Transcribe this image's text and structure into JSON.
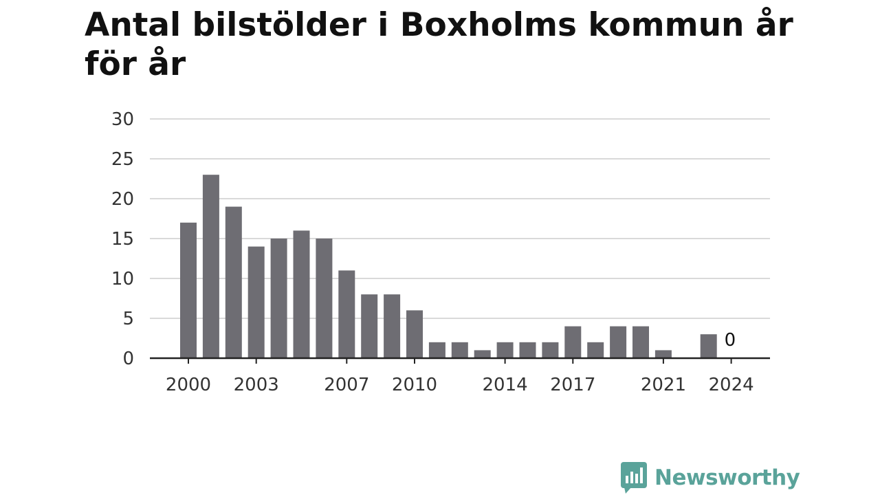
{
  "chart_data": {
    "type": "bar",
    "title": "Antal bilstölder i Boxholms kommun år för år",
    "xlabel": "",
    "ylabel": "",
    "categories": [
      "2000",
      "2001",
      "2002",
      "2003",
      "2004",
      "2005",
      "2006",
      "2007",
      "2008",
      "2009",
      "2010",
      "2011",
      "2012",
      "2013",
      "2014",
      "2015",
      "2016",
      "2017",
      "2018",
      "2019",
      "2020",
      "2021",
      "2022",
      "2023",
      "2024"
    ],
    "values": [
      17,
      23,
      19,
      14,
      15,
      16,
      15,
      11,
      8,
      8,
      6,
      2,
      2,
      1,
      2,
      2,
      2,
      4,
      2,
      4,
      4,
      1,
      0,
      3,
      0
    ],
    "x_tick_labels": [
      "2000",
      "2003",
      "2007",
      "2010",
      "2014",
      "2017",
      "2021",
      "2024"
    ],
    "y_ticks": [
      0,
      5,
      10,
      15,
      20,
      25,
      30
    ],
    "ylim": [
      0,
      30
    ],
    "grid": true,
    "data_labels": [
      {
        "category": "2024",
        "text": "0"
      }
    ],
    "colors": {
      "bar": "#6e6d73",
      "grid": "#d9d9d9",
      "axis": "#222222"
    }
  },
  "brand": {
    "name": "Newsworthy",
    "icon": "bar-chart-speech-bubble-icon",
    "color": "#5aa39a"
  }
}
